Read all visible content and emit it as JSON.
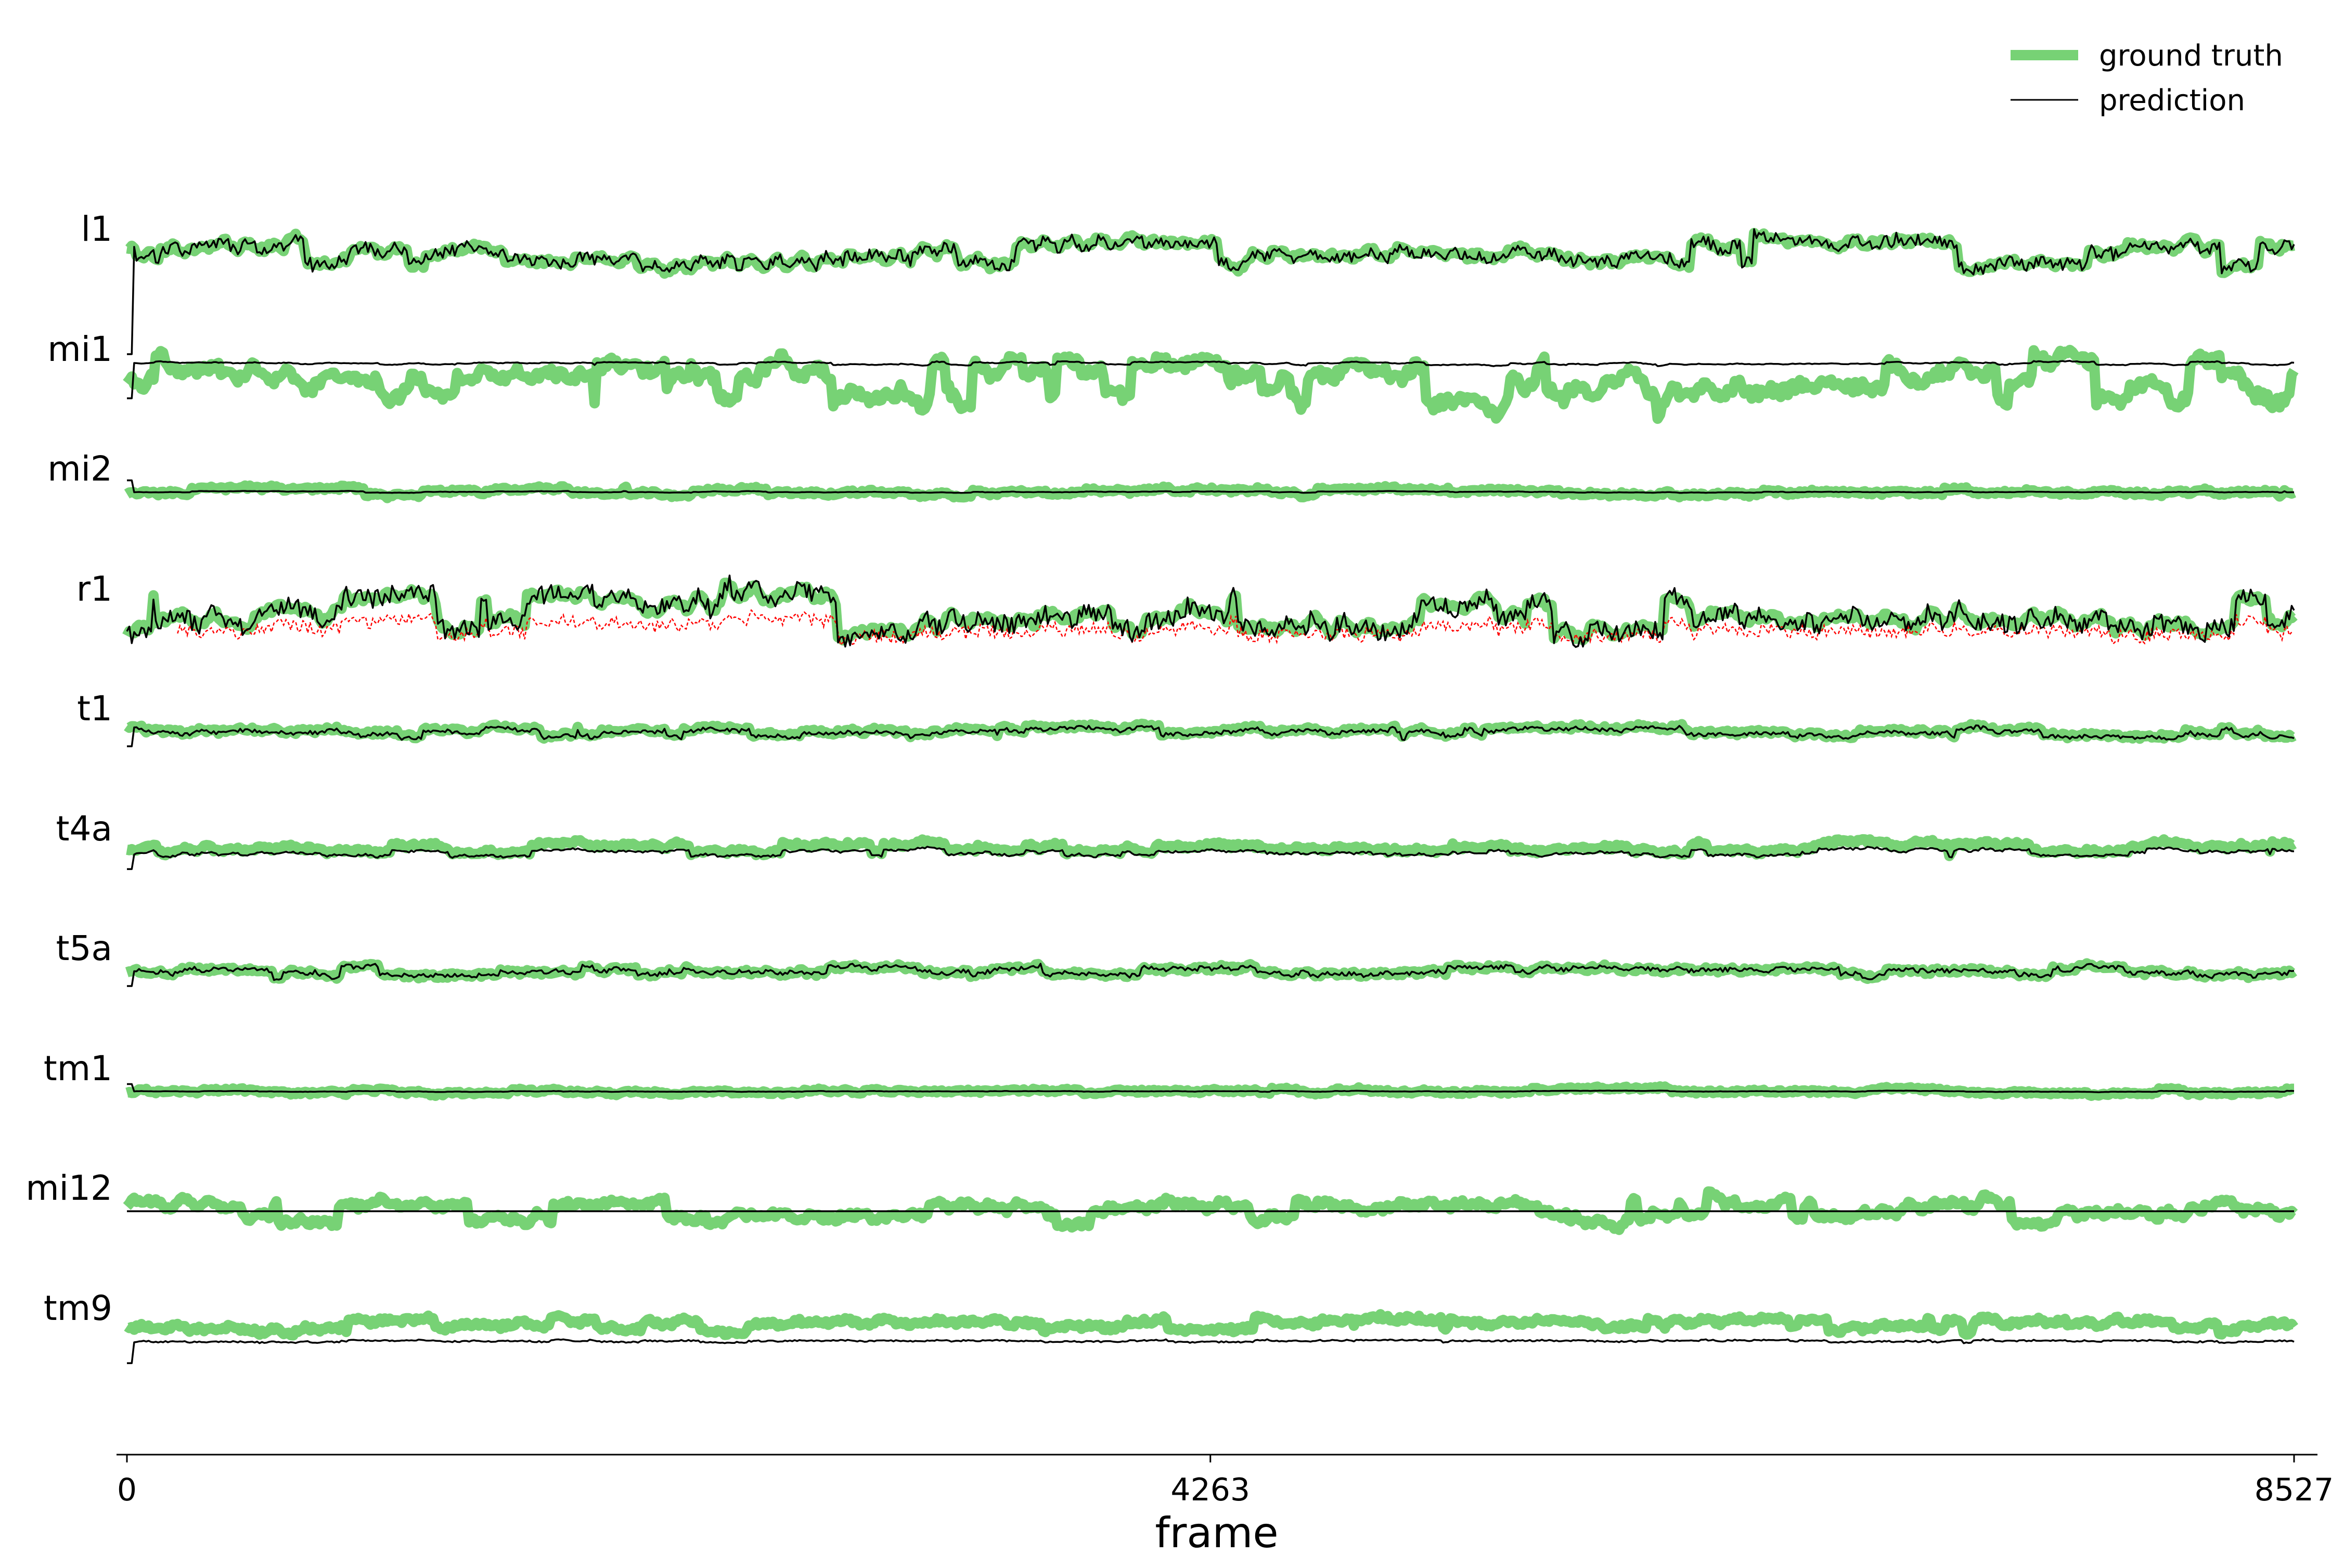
{
  "chart_data": {
    "type": "line",
    "xlabel": "frame",
    "xlim": [
      0,
      8527
    ],
    "x_ticks": [
      {
        "value": 0,
        "label": "0"
      },
      {
        "value": 4263,
        "label": "4263"
      },
      {
        "value": 8527,
        "label": "8527"
      }
    ],
    "legend": {
      "placement": "top-right",
      "entries": [
        {
          "label": "ground truth",
          "color": "#77d275",
          "style": "thick solid"
        },
        {
          "label": "prediction",
          "color": "#000000",
          "style": "thin solid"
        }
      ]
    },
    "grid": false,
    "rows": [
      {
        "name": "l1",
        "gt_level": 0.0,
        "gt_amp": 1.0,
        "gt_jitter": 0.45,
        "pred_offset": 0.0,
        "pred_amp": 1.0,
        "pred_jitter": 0.8,
        "start_spike": -7.0,
        "red": false
      },
      {
        "name": "mi1",
        "gt_level": -0.6,
        "gt_amp": 1.6,
        "gt_jitter": 0.8,
        "pred_offset": 1.2,
        "pred_amp": 0.12,
        "pred_jitter": 0.05,
        "start_spike": -1.8,
        "red": false
      },
      {
        "name": "mi2",
        "gt_level": 0.0,
        "gt_amp": 0.25,
        "gt_jitter": 0.25,
        "pred_offset": 0.0,
        "pred_amp": 0.05,
        "pred_jitter": 0.02,
        "start_spike": 0.8,
        "red": false
      },
      {
        "name": "r1",
        "gt_level": 0.0,
        "gt_amp": 1.3,
        "gt_jitter": 0.5,
        "pred_offset": 0.0,
        "pred_amp": 1.4,
        "pred_jitter": 1.3,
        "start_spike": 0.0,
        "red": true
      },
      {
        "name": "t1",
        "gt_level": 0.0,
        "gt_amp": 0.35,
        "gt_jitter": 0.3,
        "pred_offset": -0.1,
        "pred_amp": 0.35,
        "pred_jitter": 0.25,
        "start_spike": -1.0,
        "red": false
      },
      {
        "name": "t4a",
        "gt_level": 0.3,
        "gt_amp": 0.35,
        "gt_jitter": 0.3,
        "pred_offset": -0.35,
        "pred_amp": 0.25,
        "pred_jitter": 0.15,
        "start_spike": -1.2,
        "red": false
      },
      {
        "name": "t5a",
        "gt_level": 0.0,
        "gt_amp": 0.35,
        "gt_jitter": 0.3,
        "pred_offset": 0.0,
        "pred_amp": 0.35,
        "pred_jitter": 0.3,
        "start_spike": -1.0,
        "red": false
      },
      {
        "name": "tm1",
        "gt_level": 0.0,
        "gt_amp": 0.2,
        "gt_jitter": 0.2,
        "pred_offset": 0.0,
        "pred_amp": 0.04,
        "pred_jitter": 0.02,
        "start_spike": 0.5,
        "red": false
      },
      {
        "name": "mi12",
        "gt_level": 0.0,
        "gt_amp": 0.8,
        "gt_jitter": 0.45,
        "pred_offset": 0.0,
        "pred_amp": 0.0,
        "pred_jitter": 0.0,
        "start_spike": 0.0,
        "red": false
      },
      {
        "name": "tm9",
        "gt_level": 0.4,
        "gt_amp": 0.45,
        "gt_jitter": 0.35,
        "pred_offset": -1.1,
        "pred_amp": 0.08,
        "pred_jitter": 0.1,
        "start_spike": -2.2,
        "red": false
      }
    ]
  },
  "colors": {
    "ground_truth": "#77d275",
    "prediction": "#000000",
    "r1_secondary": "#ff0000",
    "axis": "#000000",
    "background": "#ffffff"
  }
}
